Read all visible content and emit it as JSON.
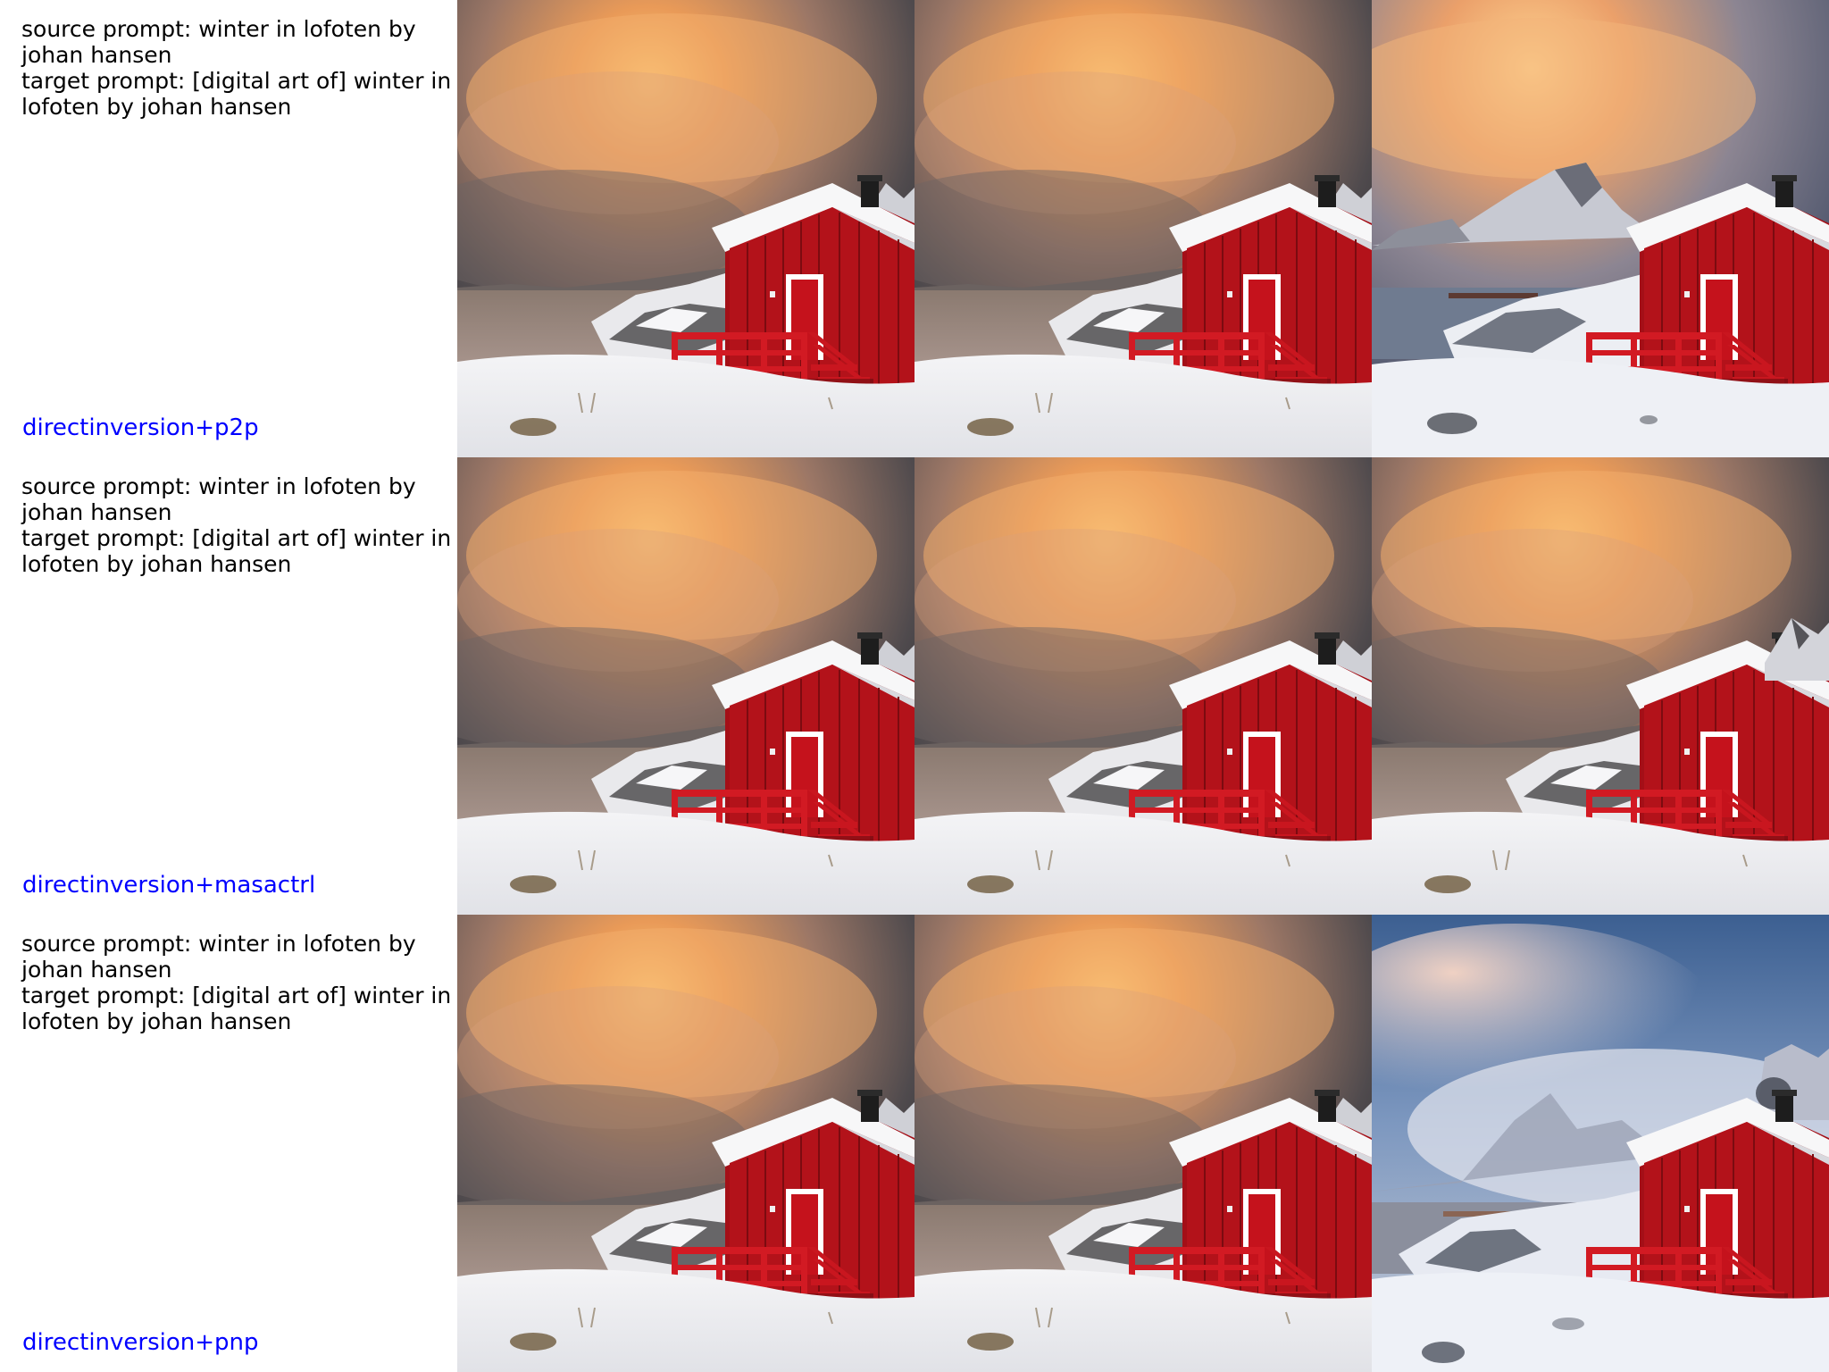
{
  "rows": [
    {
      "source_prompt": "source prompt: winter in lofoten by johan hansen",
      "target_prompt": "target prompt: [digital art of] winter in lofoten by johan hansen",
      "method": "directinversion+p2p",
      "method_color": "#0000ff"
    },
    {
      "source_prompt": "source prompt: winter in lofoten by johan hansen",
      "target_prompt": "target prompt: [digital art of] winter in lofoten by johan hansen",
      "method": "directinversion+masactrl",
      "method_color": "#0000ff"
    },
    {
      "source_prompt": "source prompt: winter in lofoten by johan hansen",
      "target_prompt": "target prompt: [digital art of] winter in lofoten by johan hansen",
      "method": "directinversion+pnp",
      "method_color": "#0000ff"
    }
  ],
  "image_scene": {
    "subject": "red cabin with white trim in snowy lofoten landscape",
    "colors": {
      "cabin_red": "#b3121a",
      "snow": "#f1f1f3",
      "sunset_cloud": "#f0a460",
      "dark_sky": "#4a4548",
      "blue_sky": "#5a7fae"
    }
  }
}
